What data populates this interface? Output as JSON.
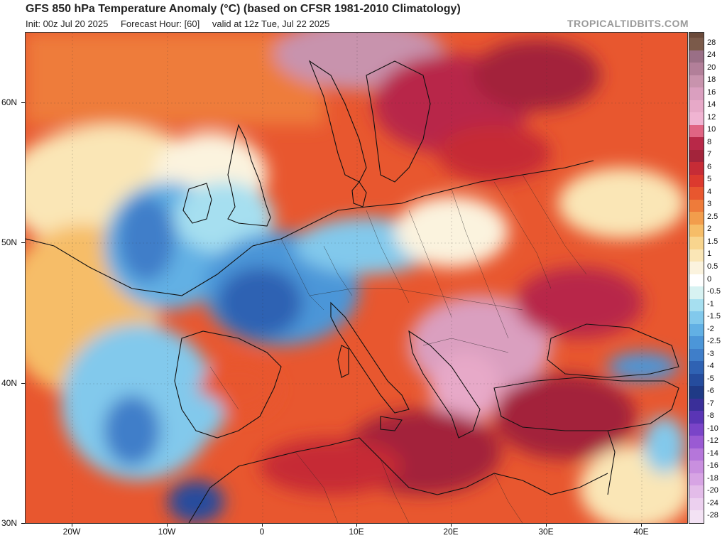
{
  "header": {
    "title": "GFS 850 hPa Temperature Anomaly (°C) (based on CFSR 1981-2010 Climatology)",
    "init": "Init: 00z Jul 20 2025",
    "forecast_hour": "Forecast Hour: [60]",
    "valid": "valid at 12z Tue, Jul 22 2025",
    "watermark": "TROPICALTIDBITS.COM"
  },
  "map": {
    "region": "Europe, North Africa, Middle East",
    "lon_labels": [
      "20W",
      "10W",
      "0",
      "10E",
      "20E",
      "30E",
      "40E"
    ],
    "lat_labels": [
      "60N",
      "50N",
      "40N",
      "30N"
    ]
  },
  "colorbar": {
    "levels": [
      "28",
      "24",
      "20",
      "18",
      "16",
      "14",
      "12",
      "10",
      "8",
      "7",
      "6",
      "5",
      "4",
      "3",
      "2.5",
      "2",
      "1.5",
      "1",
      "0.5",
      "0",
      "-0.5",
      "-1",
      "-1.5",
      "-2",
      "-2.5",
      "-3",
      "-4",
      "-5",
      "-6",
      "-7",
      "-8",
      "-10",
      "-12",
      "-14",
      "-16",
      "-18",
      "-20",
      "-24",
      "-28"
    ],
    "colors": [
      "#7b5a4a",
      "#9a6f86",
      "#b27f99",
      "#c893ad",
      "#da9fbf",
      "#e7a9c8",
      "#f0b4d2",
      "#e06483",
      "#b82848",
      "#a3243b",
      "#c62c36",
      "#dc3a2e",
      "#e8572f",
      "#ee7b3a",
      "#f29d4c",
      "#f6bd68",
      "#f8d58e",
      "#fae6b6",
      "#fbf3de",
      "#ffffff",
      "#d7f2f2",
      "#a6dff0",
      "#82c9ec",
      "#62b0e4",
      "#4c96d8",
      "#3f7ec9",
      "#2f62b3",
      "#254c9d",
      "#1f3a86",
      "#3a2f99",
      "#5a35b5",
      "#7a44c8",
      "#9a5ad3",
      "#b576da",
      "#c98fdf",
      "#d7a4e4",
      "#e3bce9",
      "#ecd0ef",
      "#f3e2f4"
    ]
  }
}
